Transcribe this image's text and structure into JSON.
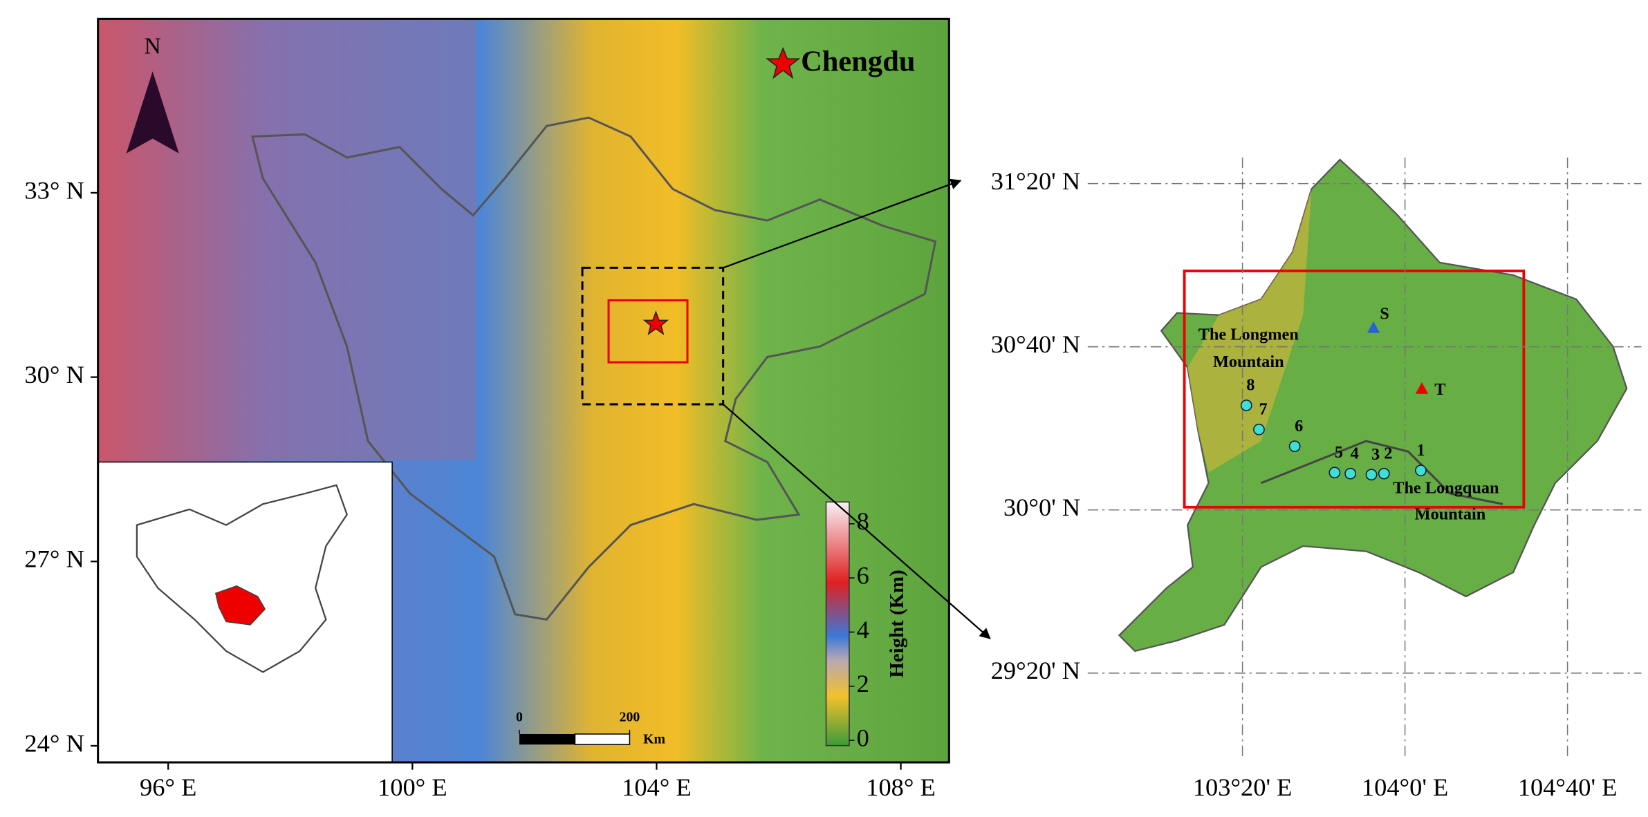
{
  "left_map": {
    "north_label": "N",
    "city_label": "Chengdu",
    "xlim": [
      94.85,
      108.79
    ],
    "ylim": [
      23.73,
      35.83
    ],
    "xticks": [
      {
        "value": 96,
        "label": "96° E"
      },
      {
        "value": 100,
        "label": "100° E"
      },
      {
        "value": 104,
        "label": "104° E"
      },
      {
        "value": 108,
        "label": "108° E"
      }
    ],
    "yticks": [
      {
        "value": 24,
        "label": "24° N"
      },
      {
        "value": 27,
        "label": "27° N"
      },
      {
        "value": 30,
        "label": "30° N"
      },
      {
        "value": 33,
        "label": "33° N"
      }
    ],
    "colorbar": {
      "title": "Height (Km)",
      "lim": [
        0,
        9
      ],
      "ticks": [
        0,
        2,
        4,
        6,
        8
      ]
    },
    "scale_bar": {
      "ticks": [
        0,
        200
      ],
      "unit": "Km"
    }
  },
  "right_map": {
    "xlim": [
      102.72,
      104.97
    ],
    "ylim": [
      29.08,
      31.44
    ],
    "xticks": [
      {
        "value": 103.3333,
        "label": "103°20' E"
      },
      {
        "value": 104,
        "label": "104°0' E"
      },
      {
        "value": 104.6667,
        "label": "104°40' E"
      }
    ],
    "yticks": [
      {
        "value": 29.3333,
        "label": "29°20' N"
      },
      {
        "value": 30,
        "label": "30°0' N"
      },
      {
        "value": 30.6667,
        "label": "30°40' N"
      },
      {
        "value": 31.3333,
        "label": "31°20' N"
      }
    ],
    "stations": [
      "1",
      "2",
      "3",
      "4",
      "5",
      "6",
      "7",
      "8"
    ],
    "sites": [
      "S",
      "T"
    ],
    "mountains": [
      [
        "The Longmen",
        "Mountain"
      ],
      [
        "The Longquan",
        "Mountain"
      ]
    ]
  }
}
